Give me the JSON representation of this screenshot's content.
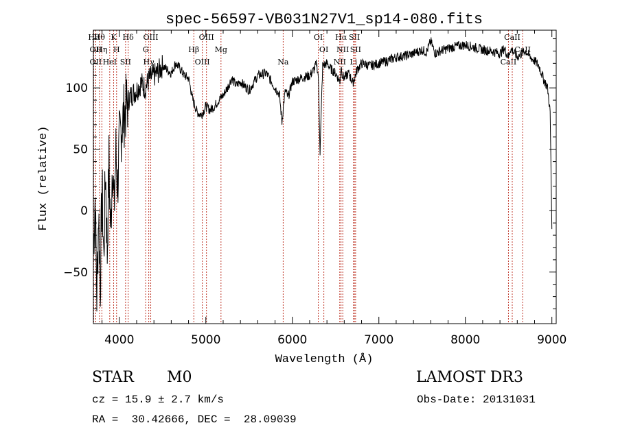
{
  "chart_data": {
    "type": "line",
    "title": "spec-56597-VB031N27V1_sp14-080.fits",
    "xlabel": "Wavelength (Å)",
    "ylabel": "Flux (relative)",
    "xlim": [
      3700,
      9050
    ],
    "ylim": [
      -92,
      147
    ],
    "xticks": [
      4000,
      5000,
      6000,
      7000,
      8000,
      9000
    ],
    "yticks": [
      -50,
      0,
      50,
      100
    ],
    "xtick_labels": [
      "4000",
      "5000",
      "6000",
      "7000",
      "8000",
      "9000"
    ],
    "ytick_labels": [
      "−50",
      "0",
      "50",
      "100"
    ],
    "grid": false,
    "series": [
      {
        "x": [
          3700,
          3720,
          3740,
          3760,
          3780,
          3800,
          3820,
          3840,
          3860,
          3880,
          3900,
          3920,
          3940,
          3960,
          3980,
          4000,
          4030,
          4060,
          4100,
          4150,
          4200,
          4250,
          4300,
          4350,
          4400,
          4450,
          4500,
          4550,
          4600,
          4650,
          4700,
          4750,
          4800,
          4850,
          4900,
          4950,
          5000,
          5050,
          5100,
          5150,
          5200,
          5250,
          5300,
          5350,
          5400,
          5500,
          5600,
          5700,
          5800,
          5850,
          5880,
          5900,
          5920,
          5950,
          6000,
          6100,
          6200,
          6250,
          6280,
          6300,
          6320,
          6350,
          6400,
          6450,
          6500,
          6550,
          6563,
          6580,
          6600,
          6650,
          6700,
          6750,
          6800,
          6900,
          7000,
          7100,
          7200,
          7300,
          7400,
          7500,
          7550,
          7600,
          7650,
          7700,
          7800,
          7900,
          8000,
          8100,
          8200,
          8300,
          8400,
          8450,
          8500,
          8520,
          8550,
          8600,
          8650,
          8700,
          8750,
          8800,
          8850,
          8900,
          8950,
          8980,
          9000
        ],
        "y": [
          -30,
          10,
          -70,
          0,
          -60,
          20,
          -40,
          35,
          -35,
          40,
          -20,
          45,
          0,
          48,
          20,
          55,
          70,
          80,
          90,
          95,
          98,
          104,
          100,
          108,
          110,
          113,
          118,
          115,
          112,
          120,
          116,
          110,
          108,
          90,
          80,
          78,
          85,
          82,
          85,
          90,
          94,
          100,
          108,
          102,
          105,
          98,
          110,
          112,
          100,
          95,
          72,
          88,
          98,
          92,
          105,
          108,
          110,
          115,
          120,
          110,
          48,
          118,
          120,
          115,
          112,
          105,
          118,
          110,
          108,
          112,
          104,
          115,
          120,
          118,
          120,
          122,
          125,
          126,
          128,
          131,
          129,
          138,
          128,
          130,
          132,
          134,
          135,
          133,
          131,
          130,
          128,
          132,
          125,
          132,
          130,
          125,
          128,
          130,
          125,
          122,
          118,
          108,
          100,
          80,
          -15
        ]
      }
    ],
    "line_markers": [
      {
        "x": 3704,
        "label": "Hθ"
      },
      {
        "x": 3727,
        "label": "OII"
      },
      {
        "x": 3727,
        "label": "OII"
      },
      {
        "x": 3770,
        "label": "Hθ"
      },
      {
        "x": 3798,
        "label": "Hη"
      },
      {
        "x": 3889,
        "label": "HeI"
      },
      {
        "x": 3934,
        "label": "K"
      },
      {
        "x": 3968,
        "label": "H"
      },
      {
        "x": 4072,
        "label": "SII"
      },
      {
        "x": 4102,
        "label": "Hδ"
      },
      {
        "x": 4304,
        "label": "G"
      },
      {
        "x": 4340,
        "label": "Hγ"
      },
      {
        "x": 4363,
        "label": "OIII"
      },
      {
        "x": 4861,
        "label": "Hβ"
      },
      {
        "x": 4959,
        "label": "OIII"
      },
      {
        "x": 5007,
        "label": "OIII"
      },
      {
        "x": 5175,
        "label": "Mg"
      },
      {
        "x": 5894,
        "label": "Na"
      },
      {
        "x": 6300,
        "label": "OI"
      },
      {
        "x": 6364,
        "label": "OI"
      },
      {
        "x": 6548,
        "label": "NII"
      },
      {
        "x": 6563,
        "label": "Hα"
      },
      {
        "x": 6583,
        "label": "NII"
      },
      {
        "x": 6707,
        "label": "Li"
      },
      {
        "x": 6717,
        "label": "SII"
      },
      {
        "x": 6731,
        "label": "SII"
      },
      {
        "x": 8498,
        "label": "CaII"
      },
      {
        "x": 8542,
        "label": "CaII"
      },
      {
        "x": 8662,
        "label": "CaII"
      }
    ]
  },
  "info": {
    "class": "STAR",
    "subclass": "M0",
    "survey": "LAMOST DR3",
    "cz": "cz = 15.9 ± 2.7 km/s",
    "obs_date": "Obs-Date: 20131031",
    "coords": "RA =  30.42666, DEC =  28.09039"
  }
}
